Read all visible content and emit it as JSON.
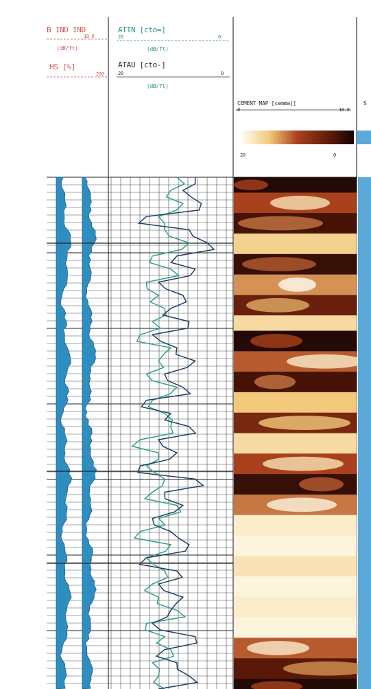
{
  "colors": {
    "curve_fill": "#2f8ec0",
    "curve_line": "#1c5f86",
    "attn_curve": "#1f3f63",
    "atau_curve": "#2e9f8c",
    "grid": "#222222",
    "header_red": "#c85a50",
    "header_teal": "#2e8f86",
    "cement_dark": "#120505",
    "cement_mid": "#a8401c",
    "cement_light": "#f2c97a",
    "cement_pale": "#fffdf2",
    "right_track": "#5ba9d8"
  },
  "header": {
    "track1_line1": "B  IND  IND",
    "track1_line1_sub": "10   8",
    "track1_units1": "(dB/ft)",
    "track1_line2": "HS   [%]",
    "track1_line2_sub": "200",
    "track2_attn": "ATTN  [cto=]",
    "track2_attn_scale_left": "20",
    "track2_attn_scale_right": "0",
    "track2_attn_units": "(dB/ft)",
    "track2_atau": "ATAU  [cto-]",
    "track2_atau_scale_left": "20",
    "track2_atau_scale_right": "0",
    "track2_atau_units": "(dB/ft)",
    "track3_title": "CEMENT MAP  [cemmaj]",
    "track3_scale_left": "0",
    "track3_scale_right": "10.0",
    "track3_colorbar_left": "20",
    "track3_colorbar_right": "0",
    "track4_label": "S"
  },
  "chart_data": {
    "type": "line",
    "title": "",
    "description_tracks": [
      {
        "name": "ATTN",
        "scale": [
          20,
          0
        ],
        "units": "dB/ft",
        "depth_samples": 40,
        "values": [
          6,
          8,
          5,
          14,
          7,
          4,
          9,
          6,
          12,
          8,
          10,
          7,
          13,
          9,
          6,
          11,
          8,
          14,
          10,
          7,
          12,
          9,
          15,
          6,
          11,
          8,
          13,
          10,
          7,
          14,
          9,
          12,
          8,
          10,
          13,
          6,
          11,
          9,
          7,
          12
        ]
      },
      {
        "name": "ATAU",
        "scale": [
          20,
          0
        ],
        "units": "dB/ft",
        "depth_samples": 40,
        "values": [
          9,
          10,
          8,
          12,
          11,
          7,
          13,
          10,
          14,
          12,
          11,
          13,
          15,
          10,
          12,
          14,
          9,
          13,
          11,
          10,
          15,
          12,
          14,
          11,
          13,
          9,
          12,
          15,
          10,
          14,
          11,
          13,
          12,
          9,
          14,
          11,
          10,
          13,
          12,
          11
        ]
      }
    ],
    "cement_map_bands": [
      {
        "depth": 0.0,
        "intensity": 0.95
      },
      {
        "depth": 0.03,
        "intensity": 0.55
      },
      {
        "depth": 0.07,
        "intensity": 0.85
      },
      {
        "depth": 0.11,
        "intensity": 0.25
      },
      {
        "depth": 0.15,
        "intensity": 0.9
      },
      {
        "depth": 0.19,
        "intensity": 0.4
      },
      {
        "depth": 0.23,
        "intensity": 0.75
      },
      {
        "depth": 0.27,
        "intensity": 0.2
      },
      {
        "depth": 0.3,
        "intensity": 0.95
      },
      {
        "depth": 0.34,
        "intensity": 0.5
      },
      {
        "depth": 0.38,
        "intensity": 0.85
      },
      {
        "depth": 0.42,
        "intensity": 0.3
      },
      {
        "depth": 0.46,
        "intensity": 0.7
      },
      {
        "depth": 0.5,
        "intensity": 0.2
      },
      {
        "depth": 0.54,
        "intensity": 0.55
      },
      {
        "depth": 0.58,
        "intensity": 0.9
      },
      {
        "depth": 0.62,
        "intensity": 0.45
      },
      {
        "depth": 0.66,
        "intensity": 0.1
      },
      {
        "depth": 0.7,
        "intensity": 0.05
      },
      {
        "depth": 0.74,
        "intensity": 0.15
      },
      {
        "depth": 0.78,
        "intensity": 0.05
      },
      {
        "depth": 0.82,
        "intensity": 0.1
      },
      {
        "depth": 0.86,
        "intensity": 0.05
      },
      {
        "depth": 0.9,
        "intensity": 0.5
      },
      {
        "depth": 0.94,
        "intensity": 0.8
      },
      {
        "depth": 0.98,
        "intensity": 0.95
      }
    ],
    "grid": true
  }
}
